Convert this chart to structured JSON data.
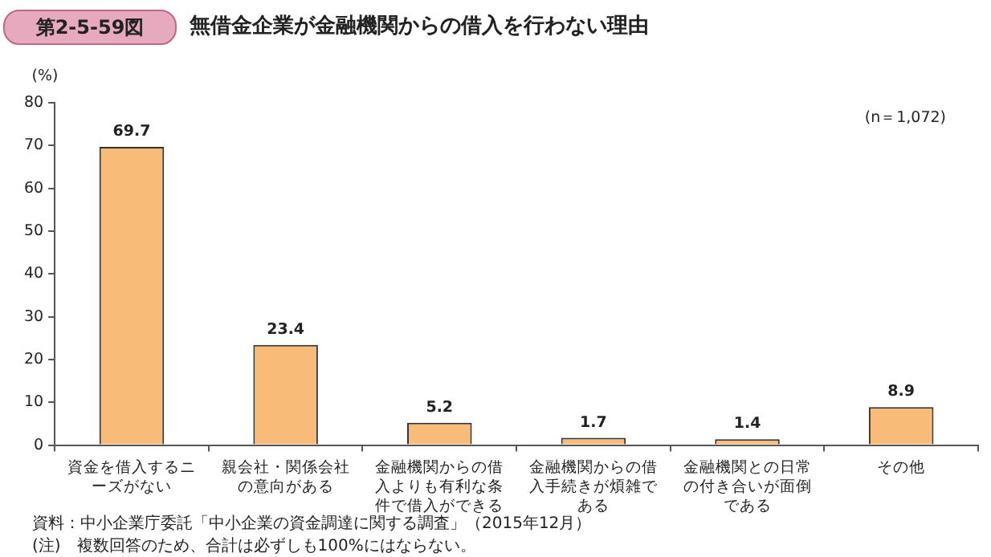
{
  "chart_data": {
    "type": "bar",
    "title": "無借金企業が金融機関からの借入を行わない理由",
    "subtitle": "第2-5-59図",
    "ylabel": "(%)",
    "categories": [
      "資金を借入するニーズがない",
      "親会社・関係会社の意向がある",
      "金融機関からの借入よりも有利な条件で借入ができる",
      "金融機関からの借入手続きが煩雑である",
      "金融機関との日常の付き合いが面倒である",
      "その他"
    ],
    "values": [
      69.7,
      23.4,
      5.2,
      1.7,
      1.4,
      8.9
    ],
    "color": "#f9bb78",
    "ylim": [
      0,
      80
    ],
    "yticks": [
      0,
      10,
      20,
      30,
      40,
      50,
      60,
      70,
      80
    ],
    "grid": false,
    "legend": false,
    "data_labels": true,
    "annotations": [
      "(n＝1,072)",
      "資料：中小企業庁委託「中小企業の資金調達に関する調査」（2015年12月）",
      "(注)　複数回答のため、合計は必ずしも100%にはならない。"
    ]
  }
}
